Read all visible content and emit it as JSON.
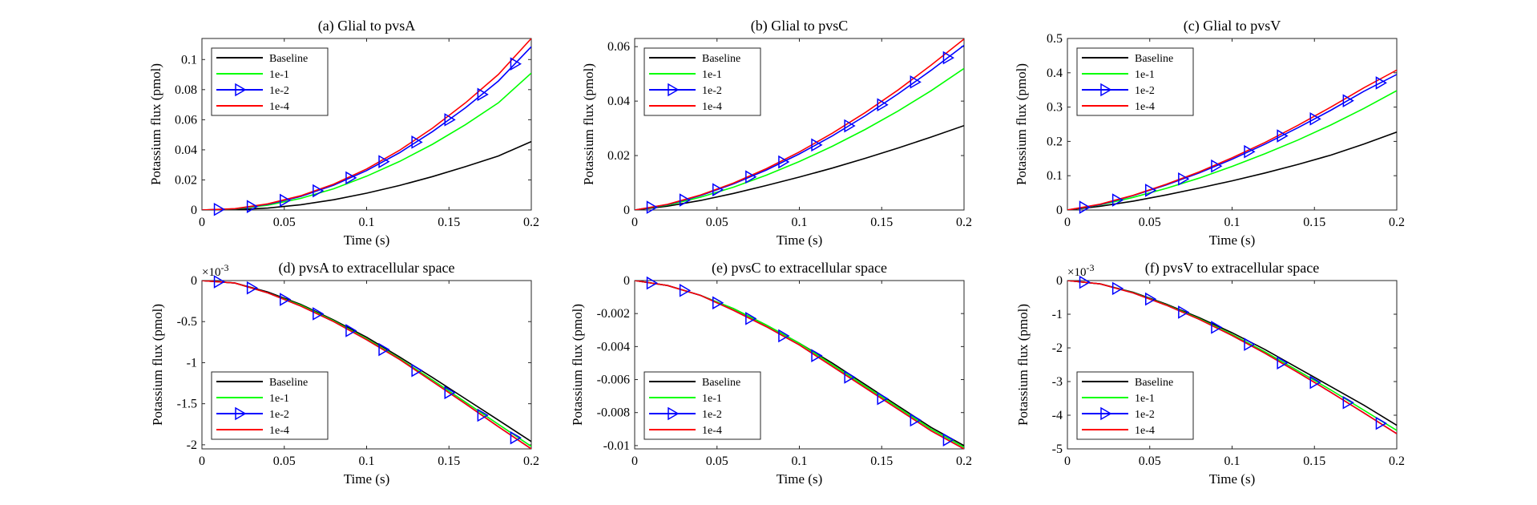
{
  "figure": {
    "x_tick_labels": [
      "0",
      "0.05",
      "0.1",
      "0.15",
      "0.2"
    ],
    "legend_entries": [
      "Baseline",
      "1e-1",
      "1e-2",
      "1e-4"
    ],
    "series_colors": {
      "Baseline": "#000000",
      "1e-1": "#00ff00",
      "1e-2": "#0000ff",
      "1e-4": "#ff0000"
    }
  },
  "chart_data": [
    {
      "type": "line",
      "title": "(a) Glial to pvsA",
      "xlabel": "Time (s)",
      "ylabel": "Potassium flux (pmol)",
      "xlim": [
        0,
        0.2
      ],
      "ylim": [
        0,
        0.114
      ],
      "x_ticks": [
        0,
        0.05,
        0.1,
        0.15,
        0.2
      ],
      "y_ticks": [
        0,
        0.02,
        0.04,
        0.06,
        0.08,
        0.1
      ],
      "y_tick_labels": [
        "0",
        "0.02",
        "0.04",
        "0.06",
        "0.08",
        "0.1"
      ],
      "y_exponent": "",
      "legend_position": "top-left",
      "x": [
        0,
        0.02,
        0.04,
        0.06,
        0.08,
        0.1,
        0.12,
        0.14,
        0.16,
        0.18,
        0.2
      ],
      "series": [
        {
          "name": "Baseline",
          "values": [
            0,
            0.0002,
            0.0013,
            0.0035,
            0.0068,
            0.0112,
            0.0163,
            0.0222,
            0.0288,
            0.0359,
            0.0455
          ]
        },
        {
          "name": "1e-1",
          "values": [
            0,
            0.0007,
            0.0032,
            0.0077,
            0.0141,
            0.0225,
            0.0323,
            0.0437,
            0.0567,
            0.0712,
            0.091
          ]
        },
        {
          "name": "1e-2",
          "values": [
            0,
            0.0008,
            0.0038,
            0.009,
            0.0165,
            0.0262,
            0.0381,
            0.0521,
            0.0679,
            0.0857,
            0.1085
          ]
        },
        {
          "name": "1e-4",
          "values": [
            0,
            0.0009,
            0.0041,
            0.0095,
            0.0172,
            0.0273,
            0.0397,
            0.0544,
            0.0712,
            0.0901,
            0.114
          ]
        }
      ],
      "marker_series": "1e-2",
      "marker_x": [
        0.01,
        0.03,
        0.05,
        0.07,
        0.09,
        0.11,
        0.13,
        0.15,
        0.17,
        0.19
      ]
    },
    {
      "type": "line",
      "title": "(b) Glial to pvsC",
      "xlabel": "Time (s)",
      "ylabel": "Potassium flux (pmol)",
      "xlim": [
        0,
        0.2
      ],
      "ylim": [
        0,
        0.063
      ],
      "x_ticks": [
        0,
        0.05,
        0.1,
        0.15,
        0.2
      ],
      "y_ticks": [
        0,
        0.02,
        0.04,
        0.06
      ],
      "y_tick_labels": [
        "0",
        "0.02",
        "0.04",
        "0.06"
      ],
      "y_exponent": "",
      "legend_position": "top-left",
      "x": [
        0,
        0.02,
        0.04,
        0.06,
        0.08,
        0.1,
        0.12,
        0.14,
        0.16,
        0.18,
        0.2
      ],
      "series": [
        {
          "name": "Baseline",
          "values": [
            0,
            0.0014,
            0.0035,
            0.0061,
            0.009,
            0.0121,
            0.0154,
            0.019,
            0.0228,
            0.0268,
            0.031
          ]
        },
        {
          "name": "1e-1",
          "values": [
            0,
            0.0018,
            0.0047,
            0.0084,
            0.0128,
            0.0178,
            0.0234,
            0.0296,
            0.0364,
            0.0438,
            0.052
          ]
        },
        {
          "name": "1e-2",
          "values": [
            0,
            0.002,
            0.0053,
            0.0096,
            0.0147,
            0.0206,
            0.0272,
            0.0346,
            0.0427,
            0.0513,
            0.0605
          ]
        },
        {
          "name": "1e-4",
          "values": [
            0,
            0.0021,
            0.0055,
            0.0099,
            0.0152,
            0.0213,
            0.0282,
            0.0358,
            0.0441,
            0.0532,
            0.0628
          ]
        }
      ],
      "marker_series": "1e-2",
      "marker_x": [
        0.01,
        0.03,
        0.05,
        0.07,
        0.09,
        0.11,
        0.13,
        0.15,
        0.17,
        0.19
      ]
    },
    {
      "type": "line",
      "title": "(c) Glial to pvsV",
      "xlabel": "Time (s)",
      "ylabel": "Potassium flux (pmol)",
      "xlim": [
        0,
        0.2
      ],
      "ylim": [
        0,
        0.5
      ],
      "x_ticks": [
        0,
        0.05,
        0.1,
        0.15,
        0.2
      ],
      "y_ticks": [
        0,
        0.1,
        0.2,
        0.3,
        0.4,
        0.5
      ],
      "y_tick_labels": [
        "0",
        "0.1",
        "0.2",
        "0.3",
        "0.4",
        "0.5"
      ],
      "y_exponent": "",
      "legend_position": "top-left",
      "x": [
        0,
        0.02,
        0.04,
        0.06,
        0.08,
        0.1,
        0.12,
        0.14,
        0.16,
        0.18,
        0.2
      ],
      "series": [
        {
          "name": "Baseline",
          "values": [
            0,
            0.011,
            0.026,
            0.044,
            0.064,
            0.085,
            0.108,
            0.133,
            0.16,
            0.192,
            0.227
          ]
        },
        {
          "name": "1e-1",
          "values": [
            0,
            0.015,
            0.037,
            0.063,
            0.093,
            0.127,
            0.164,
            0.204,
            0.248,
            0.296,
            0.348
          ]
        },
        {
          "name": "1e-2",
          "values": [
            0,
            0.016,
            0.042,
            0.073,
            0.108,
            0.148,
            0.192,
            0.24,
            0.291,
            0.346,
            0.395
          ]
        },
        {
          "name": "1e-4",
          "values": [
            0,
            0.017,
            0.043,
            0.075,
            0.111,
            0.152,
            0.197,
            0.247,
            0.3,
            0.356,
            0.408
          ]
        }
      ],
      "marker_series": "1e-2",
      "marker_x": [
        0.01,
        0.03,
        0.05,
        0.07,
        0.09,
        0.11,
        0.13,
        0.15,
        0.17,
        0.19
      ]
    },
    {
      "type": "line",
      "title": "(d) pvsA to extracellular space",
      "xlabel": "Time (s)",
      "ylabel": "Potassium flux (pmol)",
      "xlim": [
        0,
        0.2
      ],
      "ylim": [
        -2.05,
        0
      ],
      "x_ticks": [
        0,
        0.05,
        0.1,
        0.15,
        0.2
      ],
      "y_ticks": [
        -2,
        -1.5,
        -1,
        -0.5,
        0
      ],
      "y_tick_labels": [
        "-2",
        "-1.5",
        "-1",
        "-0.5",
        "0"
      ],
      "y_exponent": "×10",
      "y_exponent_power": "-3",
      "legend_position": "bottom-left",
      "x": [
        0,
        0.02,
        0.04,
        0.06,
        0.08,
        0.1,
        0.12,
        0.14,
        0.16,
        0.18,
        0.2
      ],
      "series": [
        {
          "name": "Baseline",
          "values": [
            0,
            -0.03,
            -0.14,
            -0.29,
            -0.48,
            -0.69,
            -0.93,
            -1.18,
            -1.44,
            -1.7,
            -1.96
          ]
        },
        {
          "name": "1e-1",
          "values": [
            0,
            -0.03,
            -0.15,
            -0.3,
            -0.49,
            -0.71,
            -0.95,
            -1.21,
            -1.48,
            -1.75,
            -2.02
          ]
        },
        {
          "name": "1e-2",
          "values": [
            0,
            -0.03,
            -0.15,
            -0.31,
            -0.5,
            -0.72,
            -0.96,
            -1.23,
            -1.5,
            -1.78,
            -2.05
          ]
        },
        {
          "name": "1e-4",
          "values": [
            0,
            -0.03,
            -0.15,
            -0.31,
            -0.5,
            -0.72,
            -0.96,
            -1.23,
            -1.5,
            -1.78,
            -2.05
          ]
        }
      ],
      "marker_series": "1e-2",
      "marker_x": [
        0.01,
        0.03,
        0.05,
        0.07,
        0.09,
        0.11,
        0.13,
        0.15,
        0.17,
        0.19
      ]
    },
    {
      "type": "line",
      "title": "(e) pvsC to extracellular space",
      "xlabel": "Time (s)",
      "ylabel": "Potassium flux (pmol)",
      "xlim": [
        0,
        0.2
      ],
      "ylim": [
        -0.0102,
        0
      ],
      "x_ticks": [
        0,
        0.05,
        0.1,
        0.15,
        0.2
      ],
      "y_ticks": [
        -0.01,
        -0.008,
        -0.006,
        -0.004,
        -0.002,
        0
      ],
      "y_tick_labels": [
        "-0.01",
        "-0.008",
        "-0.006",
        "-0.004",
        "-0.002",
        "0"
      ],
      "y_exponent": "",
      "legend_position": "bottom-left",
      "x": [
        0,
        0.02,
        0.04,
        0.06,
        0.08,
        0.1,
        0.12,
        0.14,
        0.16,
        0.18,
        0.2
      ],
      "series": [
        {
          "name": "Baseline",
          "values": [
            0,
            -0.0003,
            -0.0009,
            -0.0017,
            -0.0027,
            -0.0038,
            -0.005,
            -0.0063,
            -0.0076,
            -0.0089,
            -0.01
          ]
        },
        {
          "name": "1e-1",
          "values": [
            0,
            -0.0003,
            -0.0009,
            -0.0017,
            -0.0027,
            -0.0038,
            -0.0051,
            -0.0064,
            -0.0077,
            -0.009,
            -0.0101
          ]
        },
        {
          "name": "1e-2",
          "values": [
            0,
            -0.0003,
            -0.0009,
            -0.0018,
            -0.0028,
            -0.0039,
            -0.0052,
            -0.0065,
            -0.0078,
            -0.0091,
            -0.0102
          ]
        },
        {
          "name": "1e-4",
          "values": [
            0,
            -0.0003,
            -0.0009,
            -0.0018,
            -0.0028,
            -0.0039,
            -0.0052,
            -0.0065,
            -0.0078,
            -0.0091,
            -0.0102
          ]
        }
      ],
      "marker_series": "1e-2",
      "marker_x": [
        0.01,
        0.03,
        0.05,
        0.07,
        0.09,
        0.11,
        0.13,
        0.15,
        0.17,
        0.19
      ]
    },
    {
      "type": "line",
      "title": "(f) pvsV to extracellular space",
      "xlabel": "Time (s)",
      "ylabel": "Potassium flux (pmol)",
      "xlim": [
        0,
        0.2
      ],
      "ylim": [
        -5,
        0
      ],
      "x_ticks": [
        0,
        0.05,
        0.1,
        0.15,
        0.2
      ],
      "y_ticks": [
        -5,
        -4,
        -3,
        -2,
        -1,
        0
      ],
      "y_tick_labels": [
        "-5",
        "-4",
        "-3",
        "-2",
        "-1",
        "0"
      ],
      "y_exponent": "×10",
      "y_exponent_power": "-3",
      "legend_position": "bottom-left",
      "x": [
        0,
        0.02,
        0.04,
        0.06,
        0.08,
        0.1,
        0.12,
        0.14,
        0.16,
        0.18,
        0.2
      ],
      "series": [
        {
          "name": "Baseline",
          "values": [
            0,
            -0.1,
            -0.35,
            -0.7,
            -1.1,
            -1.55,
            -2.05,
            -2.6,
            -3.15,
            -3.7,
            -4.3
          ]
        },
        {
          "name": "1e-1",
          "values": [
            0,
            -0.1,
            -0.36,
            -0.72,
            -1.13,
            -1.6,
            -2.12,
            -2.68,
            -3.25,
            -3.85,
            -4.45
          ]
        },
        {
          "name": "1e-2",
          "values": [
            0,
            -0.1,
            -0.37,
            -0.73,
            -1.15,
            -1.63,
            -2.16,
            -2.73,
            -3.32,
            -3.93,
            -4.55
          ]
        },
        {
          "name": "1e-4",
          "values": [
            0,
            -0.1,
            -0.37,
            -0.73,
            -1.15,
            -1.63,
            -2.16,
            -2.73,
            -3.32,
            -3.93,
            -4.55
          ]
        }
      ],
      "marker_series": "1e-2",
      "marker_x": [
        0.01,
        0.03,
        0.05,
        0.07,
        0.09,
        0.11,
        0.13,
        0.15,
        0.17,
        0.19
      ]
    }
  ]
}
